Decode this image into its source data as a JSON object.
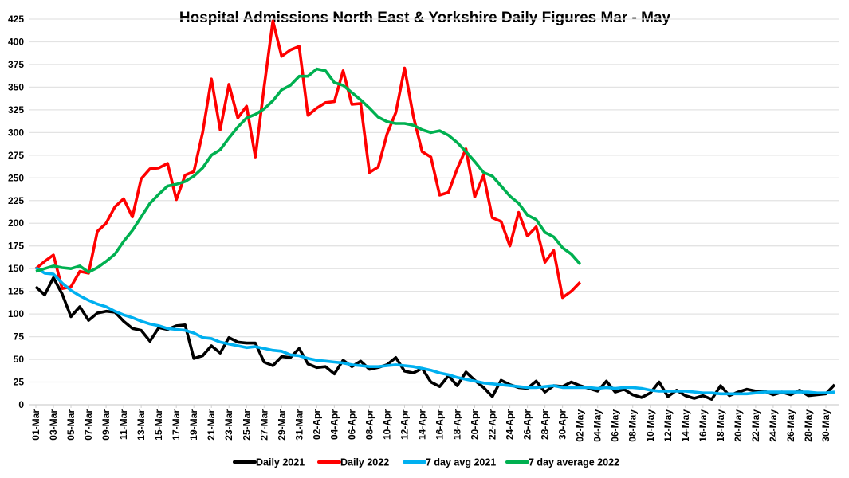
{
  "chart_data": {
    "type": "line",
    "title": "Hospital Admissions North East & Yorkshire Daily Figures Mar - May",
    "xlabel": "",
    "ylabel": "",
    "ylim": [
      0,
      425
    ],
    "y_ticks": [
      0,
      25,
      50,
      75,
      100,
      125,
      150,
      175,
      200,
      225,
      250,
      275,
      300,
      325,
      350,
      375,
      400,
      425
    ],
    "grid": true,
    "legend_position": "bottom",
    "x_count": 92,
    "x_tick_every": 2,
    "x_tick_labels": [
      "01-Mar",
      "03-Mar",
      "05-Mar",
      "07-Mar",
      "09-Mar",
      "11-Mar",
      "13-Mar",
      "15-Mar",
      "17-Mar",
      "19-Mar",
      "21-Mar",
      "23-Mar",
      "25-Mar",
      "27-Mar",
      "29-Mar",
      "31-Mar",
      "02-Apr",
      "04-Apr",
      "06-Apr",
      "08-Apr",
      "10-Apr",
      "12-Apr",
      "14-Apr",
      "16-Apr",
      "18-Apr",
      "20-Apr",
      "22-Apr",
      "24-Apr",
      "26-Apr",
      "28-Apr",
      "30-Apr",
      "02-May",
      "04-May",
      "06-May",
      "08-May",
      "10-May",
      "12-May",
      "14-May",
      "16-May",
      "18-May",
      "20-May",
      "22-May",
      "24-May",
      "26-May",
      "28-May",
      "30-May"
    ],
    "series": [
      {
        "name": "Daily 2021",
        "color": "#000000",
        "values": [
          130,
          121,
          140,
          122,
          97,
          108,
          93,
          101,
          103,
          102,
          92,
          84,
          82,
          70,
          85,
          83,
          87,
          88,
          51,
          54,
          65,
          57,
          74,
          69,
          68,
          68,
          47,
          43,
          53,
          52,
          62,
          45,
          41,
          42,
          34,
          49,
          42,
          48,
          39,
          41,
          44,
          52,
          37,
          35,
          40,
          25,
          20,
          32,
          21,
          36,
          27,
          19,
          9,
          27,
          22,
          19,
          18,
          26,
          14,
          21,
          20,
          25,
          21,
          18,
          15,
          26,
          14,
          17,
          11,
          8,
          13,
          25,
          9,
          16,
          10,
          7,
          10,
          6,
          21,
          10,
          14,
          17,
          15,
          15,
          11,
          14,
          11,
          16,
          10,
          11,
          12,
          22
        ]
      },
      {
        "name": "Daily 2022",
        "color": "#ff0000",
        "values": [
          150,
          158,
          165,
          128,
          130,
          147,
          145,
          191,
          200,
          218,
          227,
          207,
          249,
          260,
          261,
          266,
          226,
          253,
          257,
          300,
          359,
          303,
          353,
          316,
          329,
          273,
          350,
          423,
          384,
          391,
          395,
          319,
          327,
          333,
          334,
          368,
          331,
          332,
          256,
          262,
          298,
          322,
          371,
          318,
          279,
          273,
          231,
          234,
          260,
          282,
          229,
          253,
          206,
          202,
          175,
          212,
          186,
          196,
          157,
          170,
          118,
          125,
          135
        ]
      },
      {
        "name": "7 day avg 2021",
        "color": "#00b0f0",
        "values": [
          151,
          145,
          144,
          134,
          126,
          120,
          115,
          111,
          108,
          103,
          99,
          96,
          92,
          89,
          87,
          84,
          83,
          82,
          79,
          74,
          73,
          69,
          67,
          65,
          63,
          64,
          62,
          60,
          59,
          55,
          54,
          51,
          49,
          48,
          47,
          46,
          44,
          43,
          42,
          42,
          43,
          44,
          43,
          42,
          40,
          38,
          35,
          33,
          30,
          28,
          26,
          24,
          23,
          22,
          21,
          20,
          19,
          19,
          20,
          21,
          19,
          19,
          19,
          19,
          18,
          19,
          18,
          19,
          19,
          18,
          16,
          15,
          15,
          15,
          15,
          14,
          13,
          13,
          12,
          12,
          12,
          12,
          13,
          14,
          14,
          14,
          14,
          14,
          14,
          13,
          13,
          14
        ]
      },
      {
        "name": "7 day average 2022",
        "color": "#00b050",
        "values": [
          147,
          150,
          153,
          151,
          150,
          153,
          146,
          151,
          158,
          166,
          180,
          192,
          207,
          222,
          232,
          241,
          243,
          246,
          252,
          261,
          275,
          281,
          294,
          306,
          316,
          320,
          326,
          335,
          347,
          352,
          362,
          362,
          370,
          368,
          355,
          352,
          344,
          336,
          327,
          317,
          312,
          310,
          310,
          308,
          303,
          300,
          302,
          297,
          289,
          279,
          268,
          256,
          252,
          241,
          230,
          222,
          209,
          204,
          190,
          185,
          173,
          166,
          155
        ]
      }
    ]
  }
}
